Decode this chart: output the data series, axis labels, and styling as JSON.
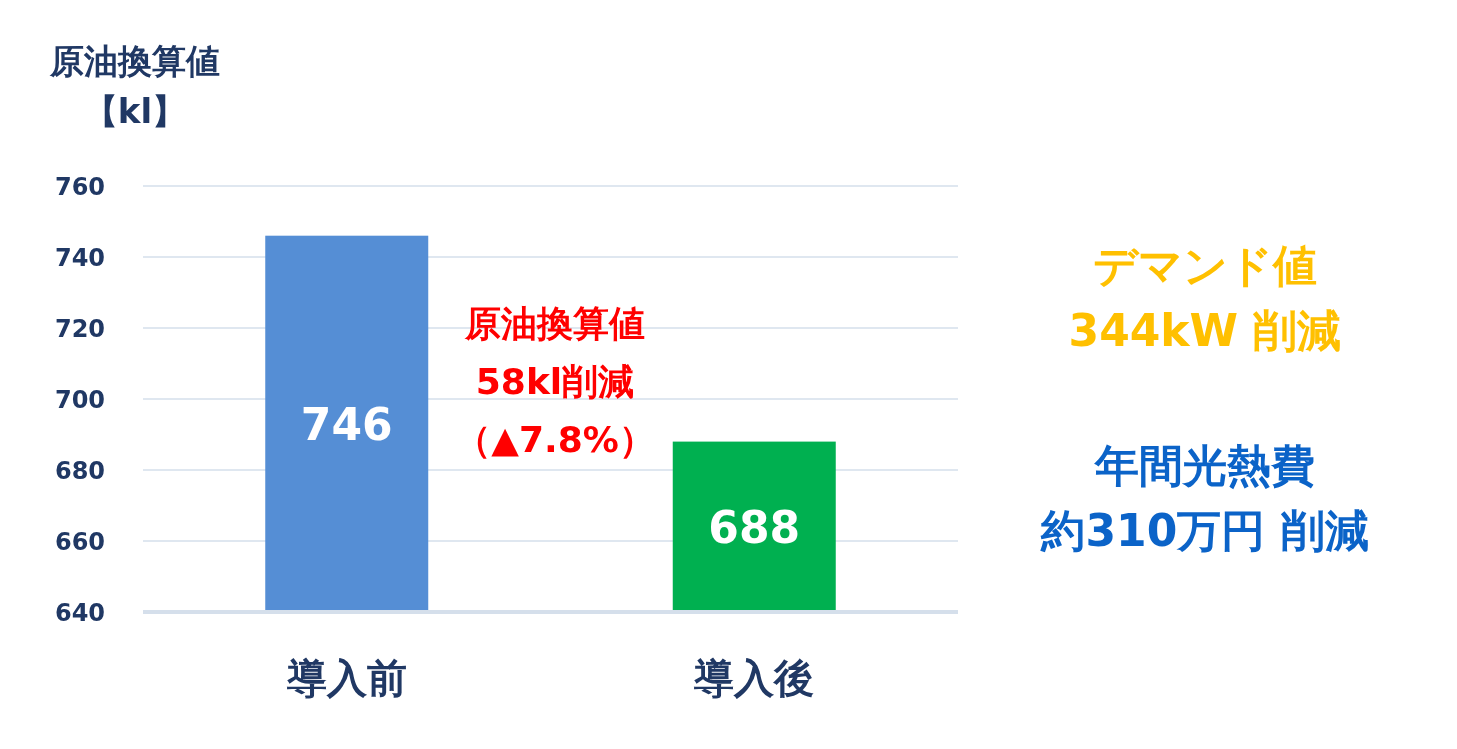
{
  "chart_data": {
    "type": "bar",
    "ylabel": "原油換算値【kl】",
    "categories": [
      "導入前",
      "導入後"
    ],
    "values": [
      746,
      688
    ],
    "colors": [
      "#558ed5",
      "#00b050"
    ],
    "ylim": [
      640,
      760
    ],
    "yticks": [
      640,
      660,
      680,
      700,
      720,
      740,
      760
    ],
    "grid": "y",
    "data_labels": true,
    "annotations": [
      "原油換算値",
      "58kl削減",
      "（▲7.8%）",
      "デマンド値",
      "344kW 削減",
      "年間光熱費",
      "約310万円 削減"
    ]
  }
}
